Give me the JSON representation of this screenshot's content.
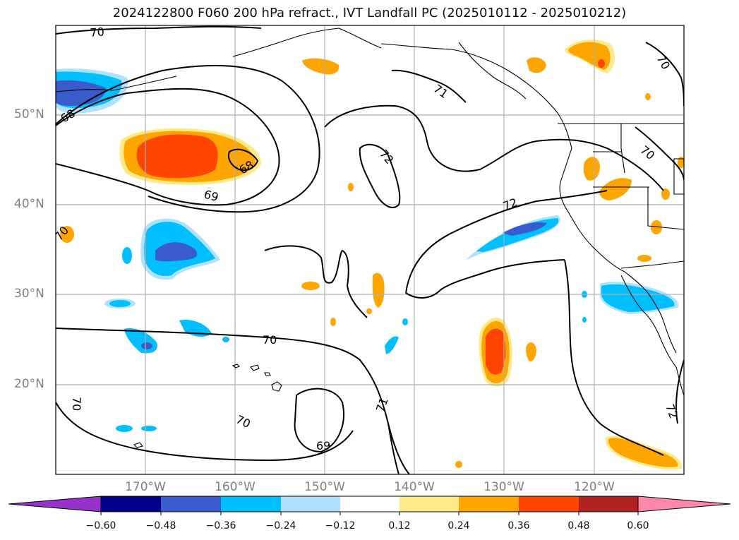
{
  "title": "2024122800 F060 200 hPa refract., IVT Landfall PC (2025010112 - 2025010212)",
  "lat_labels": [
    "50°N",
    "40°N",
    "30°N",
    "20°N"
  ],
  "lon_labels": [
    "170°W",
    "160°W",
    "150°W",
    "140°W",
    "130°W",
    "120°W"
  ],
  "contour_labels": [
    "70",
    "68",
    "69",
    "68",
    "71",
    "72",
    "72",
    "70",
    "70",
    "70",
    "70",
    "70",
    "69",
    "71",
    "70",
    "72"
  ],
  "colorbar": {
    "ticks": [
      "−0.60",
      "−0.48",
      "−0.36",
      "−0.24",
      "−0.12",
      "0.12",
      "0.24",
      "0.36",
      "0.48",
      "0.60"
    ],
    "colors": [
      "#9932cc",
      "#00008b",
      "#3a5bcc",
      "#00bfff",
      "#b0e2ff",
      "#ffffff",
      "#ffea8a",
      "#ffa500",
      "#ff4500",
      "#b22222",
      "#ff88aa"
    ]
  },
  "map": {
    "lon_range": [
      -180,
      -110
    ],
    "lat_range": [
      10,
      60
    ],
    "grid": true
  }
}
